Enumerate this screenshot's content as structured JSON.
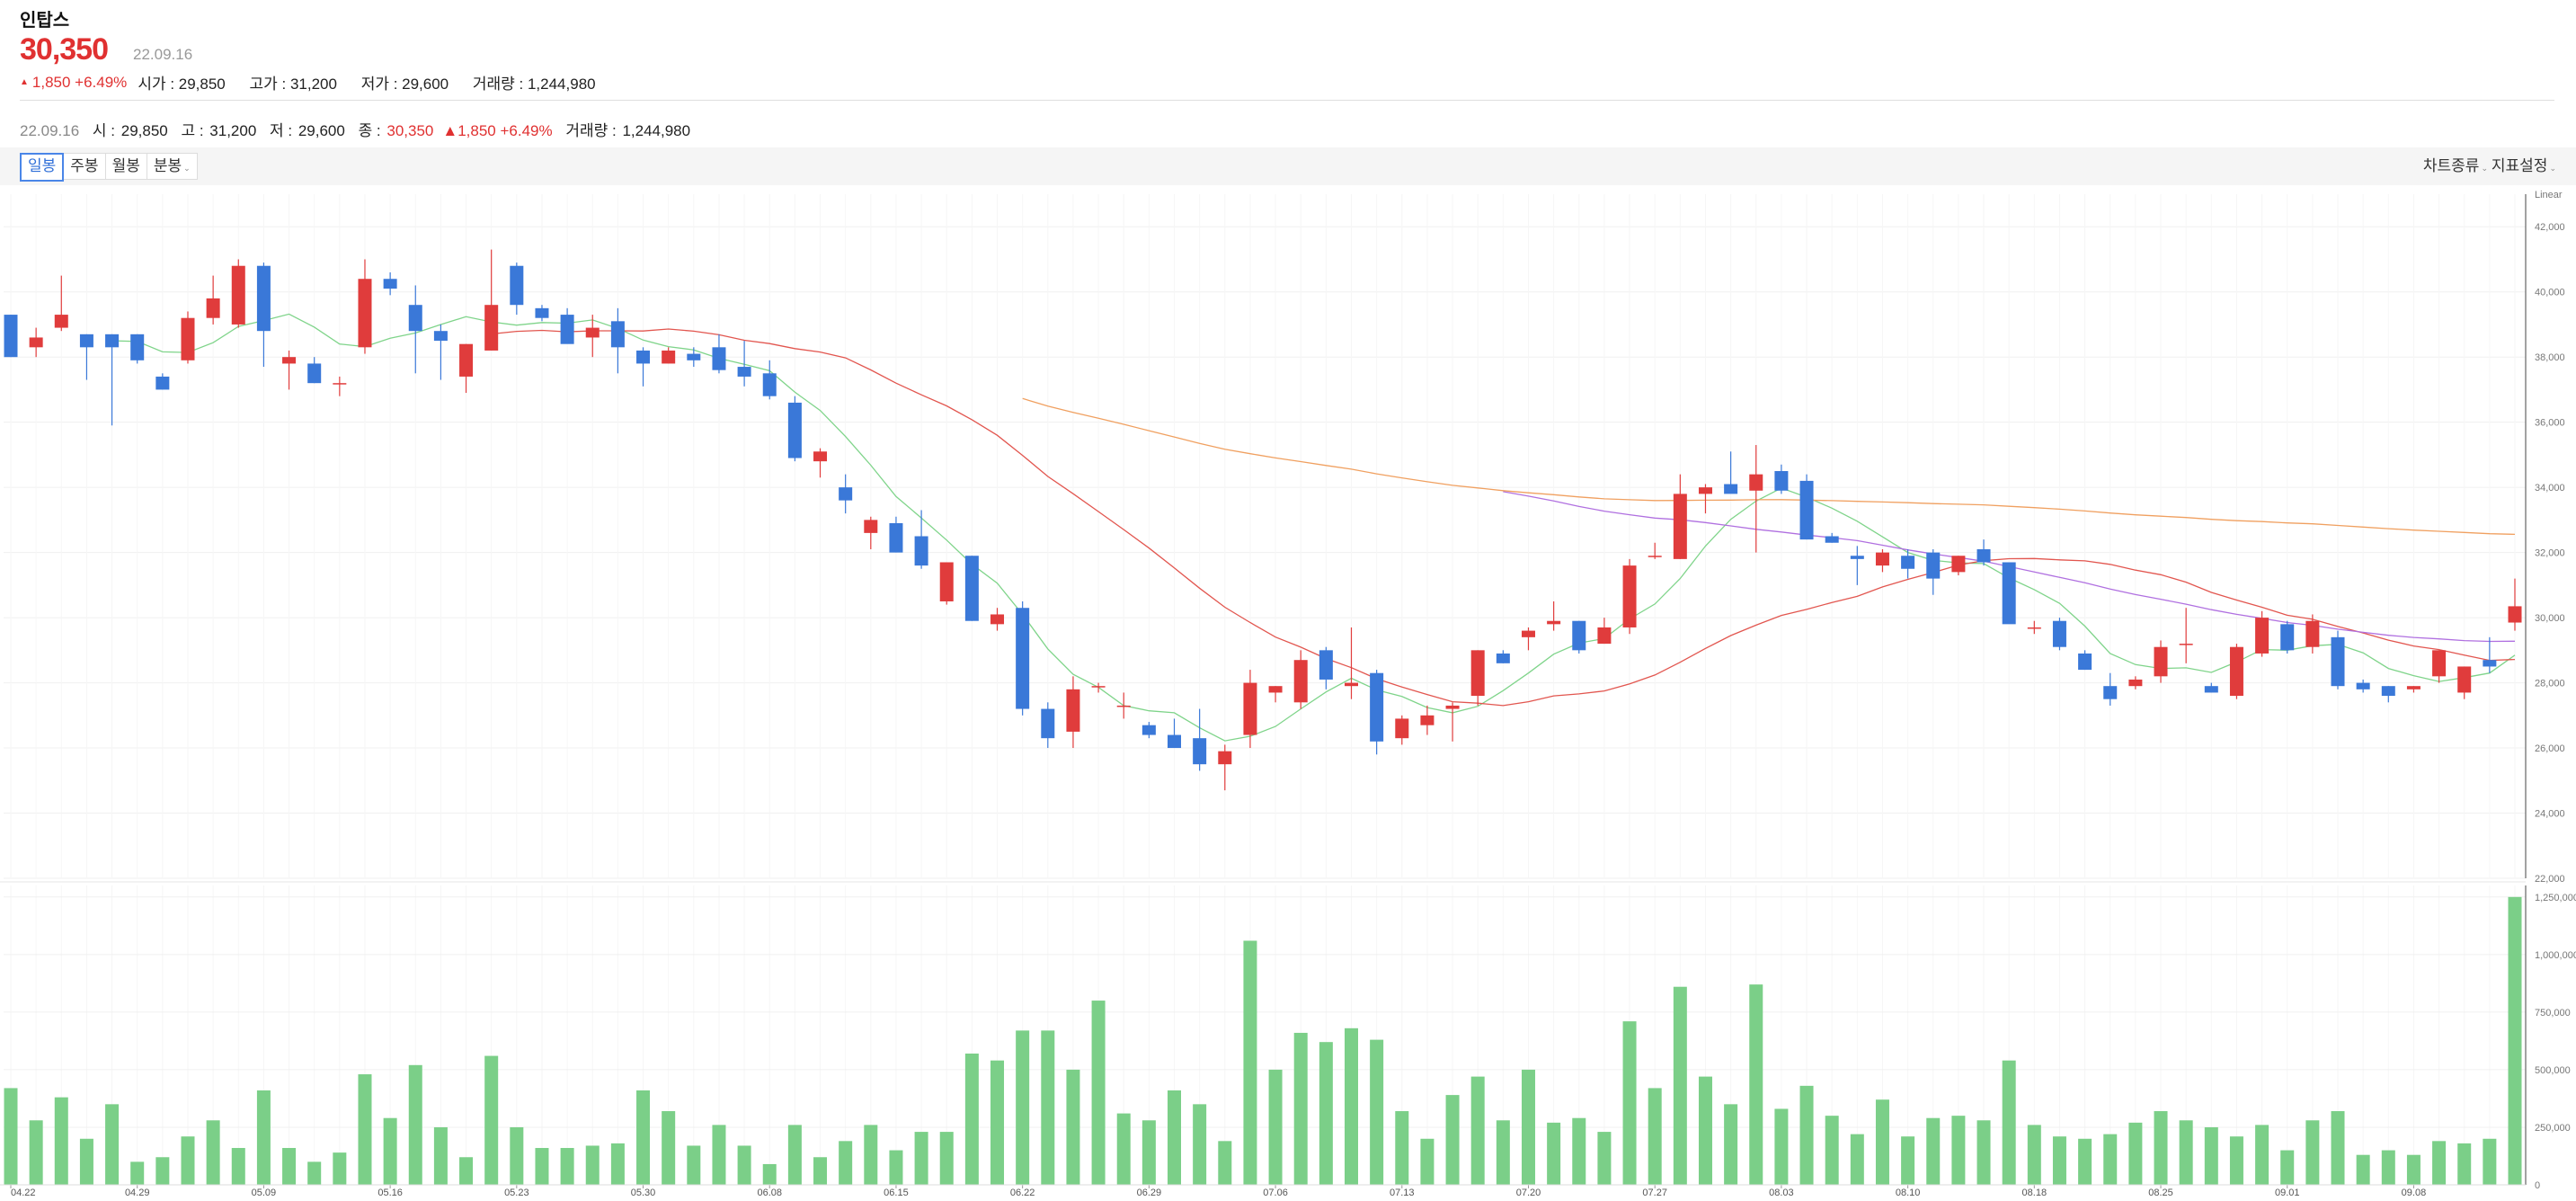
{
  "stock": {
    "name": "인탑스",
    "price": "30,350",
    "date": "22.09.16",
    "change": "1,850 +6.49%",
    "open_label": "시가 : ",
    "open": "29,850",
    "high_label": "고가 : ",
    "high": "31,200",
    "low_label": "저가 : ",
    "low": "29,600",
    "volume_label": "거래량 : ",
    "volume": "1,244,980"
  },
  "info_bar": {
    "date": "22.09.16",
    "open_label": "시 : ",
    "open": "29,850",
    "high_label": "고 : ",
    "high": "31,200",
    "low_label": "저 : ",
    "low": "29,600",
    "close_label": "종 : ",
    "close": "30,350",
    "change": "▲1,850 +6.49%",
    "volume_label": "거래량 : ",
    "volume": "1,244,980"
  },
  "toolbar": {
    "tabs": [
      "일봉",
      "주봉",
      "월봉",
      "분봉"
    ],
    "active_tab": "일봉",
    "chart_type": "차트종류",
    "indicator_settings": "지표설정"
  },
  "colors": {
    "up": "#e03c3c",
    "down": "#3a78d8",
    "volume": "#7bcf88",
    "ma5": "#7fd48a",
    "ma20": "#e2564f",
    "ma60": "#b070e0",
    "ma120": "#f0a060"
  },
  "chart_data": [
    {
      "type": "candlestick",
      "scale_label": "Linear",
      "ylim": [
        22000,
        43000
      ],
      "y_ticks": [
        "22,000",
        "24,000",
        "26,000",
        "28,000",
        "30,000",
        "32,000",
        "34,000",
        "36,000",
        "38,000",
        "40,000",
        "42,000"
      ],
      "x_tick_labels": [
        {
          "index": 0,
          "label": "04.22"
        },
        {
          "index": 5,
          "label": "04.29"
        },
        {
          "index": 10,
          "label": "05.09"
        },
        {
          "index": 15,
          "label": "05.16"
        },
        {
          "index": 20,
          "label": "05.23"
        },
        {
          "index": 25,
          "label": "05.30"
        },
        {
          "index": 30,
          "label": "06.08"
        },
        {
          "index": 35,
          "label": "06.15"
        },
        {
          "index": 40,
          "label": "06.22"
        },
        {
          "index": 45,
          "label": "06.29"
        },
        {
          "index": 50,
          "label": "07.06"
        },
        {
          "index": 55,
          "label": "07.13"
        },
        {
          "index": 60,
          "label": "07.20"
        },
        {
          "index": 65,
          "label": "07.27"
        },
        {
          "index": 70,
          "label": "08.03"
        },
        {
          "index": 75,
          "label": "08.10"
        },
        {
          "index": 80,
          "label": "08.18"
        },
        {
          "index": 85,
          "label": "08.25"
        },
        {
          "index": 90,
          "label": "09.01"
        },
        {
          "index": 95,
          "label": "09.08"
        }
      ],
      "ohlc": [
        [
          39300,
          39300,
          38000,
          38000
        ],
        [
          38300,
          38900,
          38000,
          38600
        ],
        [
          38900,
          40500,
          38800,
          39300
        ],
        [
          38700,
          38700,
          37300,
          38300
        ],
        [
          38700,
          38700,
          35900,
          38300
        ],
        [
          38700,
          38700,
          37800,
          37900
        ],
        [
          37400,
          37500,
          37000,
          37000
        ],
        [
          37900,
          39400,
          37800,
          39200
        ],
        [
          39200,
          40500,
          39000,
          39800
        ],
        [
          39000,
          41000,
          38900,
          40800
        ],
        [
          40800,
          40900,
          37700,
          38800
        ],
        [
          37800,
          38200,
          37000,
          38000
        ],
        [
          37800,
          38000,
          37200,
          37200
        ],
        [
          37200,
          37400,
          36800,
          37200
        ],
        [
          38300,
          41000,
          38100,
          40400
        ],
        [
          40400,
          40600,
          39900,
          40100
        ],
        [
          39600,
          40200,
          37500,
          38800
        ],
        [
          38800,
          39000,
          37300,
          38500
        ],
        [
          37400,
          38400,
          36900,
          38400
        ],
        [
          38200,
          41300,
          38200,
          39600
        ],
        [
          40800,
          40900,
          39300,
          39600
        ],
        [
          39500,
          39600,
          39100,
          39200
        ],
        [
          39300,
          39500,
          38500,
          38400
        ],
        [
          38600,
          39300,
          38000,
          38900
        ],
        [
          39100,
          39500,
          37500,
          38300
        ],
        [
          38200,
          38300,
          37100,
          37800
        ],
        [
          37800,
          38300,
          37800,
          38200
        ],
        [
          38100,
          38300,
          37700,
          37900
        ],
        [
          38300,
          38700,
          37500,
          37600
        ],
        [
          37700,
          38500,
          37100,
          37400
        ],
        [
          37500,
          37900,
          36700,
          36800
        ],
        [
          36600,
          36800,
          34800,
          34900
        ],
        [
          34800,
          35200,
          34300,
          35100
        ],
        [
          34000,
          34400,
          33200,
          33600
        ],
        [
          32600,
          33100,
          32100,
          33000
        ],
        [
          32900,
          33100,
          32000,
          32000
        ],
        [
          32500,
          33300,
          31500,
          31600
        ],
        [
          30500,
          31600,
          30400,
          31700
        ],
        [
          31900,
          31900,
          29900,
          29900
        ],
        [
          29800,
          30300,
          29600,
          30100
        ],
        [
          30300,
          30500,
          27000,
          27200
        ],
        [
          27200,
          27400,
          26000,
          26300
        ],
        [
          26500,
          28200,
          26000,
          27800
        ],
        [
          27900,
          28000,
          27700,
          27900
        ],
        [
          27300,
          27700,
          26900,
          27300
        ],
        [
          26700,
          26800,
          26300,
          26400
        ],
        [
          26400,
          26900,
          26000,
          26000
        ],
        [
          26300,
          27200,
          25300,
          25500
        ],
        [
          25500,
          26100,
          24700,
          25900
        ],
        [
          26400,
          28400,
          26000,
          28000
        ],
        [
          27700,
          27900,
          27400,
          27900
        ],
        [
          27400,
          29000,
          27200,
          28700
        ],
        [
          29000,
          29100,
          27800,
          28100
        ],
        [
          27900,
          29700,
          27500,
          28000
        ],
        [
          28300,
          28400,
          25800,
          26200
        ],
        [
          26300,
          27000,
          26100,
          26900
        ],
        [
          26700,
          27300,
          26400,
          27000
        ],
        [
          27200,
          27400,
          26200,
          27300
        ],
        [
          27600,
          29000,
          27300,
          29000
        ],
        [
          28900,
          29000,
          28600,
          28600
        ],
        [
          29400,
          29700,
          29000,
          29600
        ],
        [
          29800,
          30500,
          29600,
          29900
        ],
        [
          29900,
          29900,
          28900,
          29000
        ],
        [
          29200,
          30000,
          29200,
          29700
        ],
        [
          29700,
          31800,
          29500,
          31600
        ],
        [
          31900,
          32300,
          31800,
          31900
        ],
        [
          31800,
          34400,
          31800,
          33800
        ],
        [
          33800,
          34100,
          33200,
          34000
        ],
        [
          34100,
          35100,
          33900,
          33800
        ],
        [
          33900,
          35300,
          32000,
          34400
        ],
        [
          34500,
          34700,
          33800,
          33900
        ],
        [
          34200,
          34400,
          32400,
          32400
        ],
        [
          32500,
          32600,
          32300,
          32300
        ],
        [
          31900,
          32200,
          31000,
          31800
        ],
        [
          31600,
          32100,
          31400,
          32000
        ],
        [
          31900,
          32100,
          31200,
          31500
        ],
        [
          32000,
          32100,
          30700,
          31200
        ],
        [
          31400,
          31900,
          31300,
          31900
        ],
        [
          32100,
          32400,
          31600,
          31700
        ],
        [
          31700,
          31700,
          29900,
          29800
        ],
        [
          29700,
          29900,
          29500,
          29700
        ],
        [
          29900,
          30000,
          29000,
          29100
        ],
        [
          28900,
          29000,
          28400,
          28400
        ],
        [
          27900,
          28300,
          27300,
          27500
        ],
        [
          27900,
          28200,
          27800,
          28100
        ],
        [
          28200,
          29300,
          28000,
          29100
        ],
        [
          29200,
          30300,
          28600,
          29200
        ],
        [
          27900,
          28000,
          27700,
          27700
        ],
        [
          27600,
          29200,
          27500,
          29100
        ],
        [
          28900,
          30200,
          28800,
          30000
        ],
        [
          29800,
          29900,
          28900,
          29000
        ],
        [
          29100,
          30100,
          28900,
          29900
        ],
        [
          29400,
          29600,
          27800,
          27900
        ],
        [
          28000,
          28100,
          27700,
          27800
        ],
        [
          27900,
          27900,
          27400,
          27600
        ],
        [
          27800,
          27900,
          27700,
          27900
        ],
        [
          28200,
          29000,
          28000,
          29000
        ],
        [
          27700,
          28500,
          27500,
          28500
        ],
        [
          28700,
          29400,
          28300,
          28500
        ],
        [
          29850,
          31200,
          29600,
          30350
        ]
      ],
      "moving_averages": [
        {
          "period": 5,
          "color": "#7fd48a"
        },
        {
          "period": 20,
          "color": "#e2564f"
        },
        {
          "period": 60,
          "color": "#b070e0"
        },
        {
          "period": 120,
          "color": "#f0a060"
        }
      ]
    },
    {
      "type": "bar",
      "series_label": "거래량",
      "ylim": [
        0,
        1300000
      ],
      "y_ticks": [
        "0",
        "250,000",
        "500,000",
        "750,000",
        "1,000,000",
        "1,250,000"
      ],
      "values": [
        420000,
        280000,
        380000,
        200000,
        350000,
        100000,
        120000,
        210000,
        280000,
        160000,
        410000,
        160000,
        100000,
        140000,
        480000,
        290000,
        520000,
        250000,
        120000,
        560000,
        250000,
        160000,
        160000,
        170000,
        180000,
        410000,
        320000,
        170000,
        260000,
        170000,
        90000,
        260000,
        120000,
        190000,
        260000,
        150000,
        230000,
        230000,
        570000,
        540000,
        670000,
        670000,
        500000,
        800000,
        310000,
        280000,
        410000,
        350000,
        190000,
        1060000,
        500000,
        660000,
        620000,
        680000,
        630000,
        320000,
        200000,
        390000,
        470000,
        280000,
        500000,
        270000,
        290000,
        230000,
        710000,
        420000,
        860000,
        470000,
        350000,
        870000,
        330000,
        430000,
        300000,
        220000,
        370000,
        210000,
        290000,
        300000,
        280000,
        540000,
        260000,
        210000,
        200000,
        220000,
        270000,
        320000,
        280000,
        250000,
        210000,
        260000,
        150000,
        280000,
        320000,
        130000,
        150000,
        130000,
        190000,
        180000,
        200000,
        1250000
      ]
    }
  ]
}
